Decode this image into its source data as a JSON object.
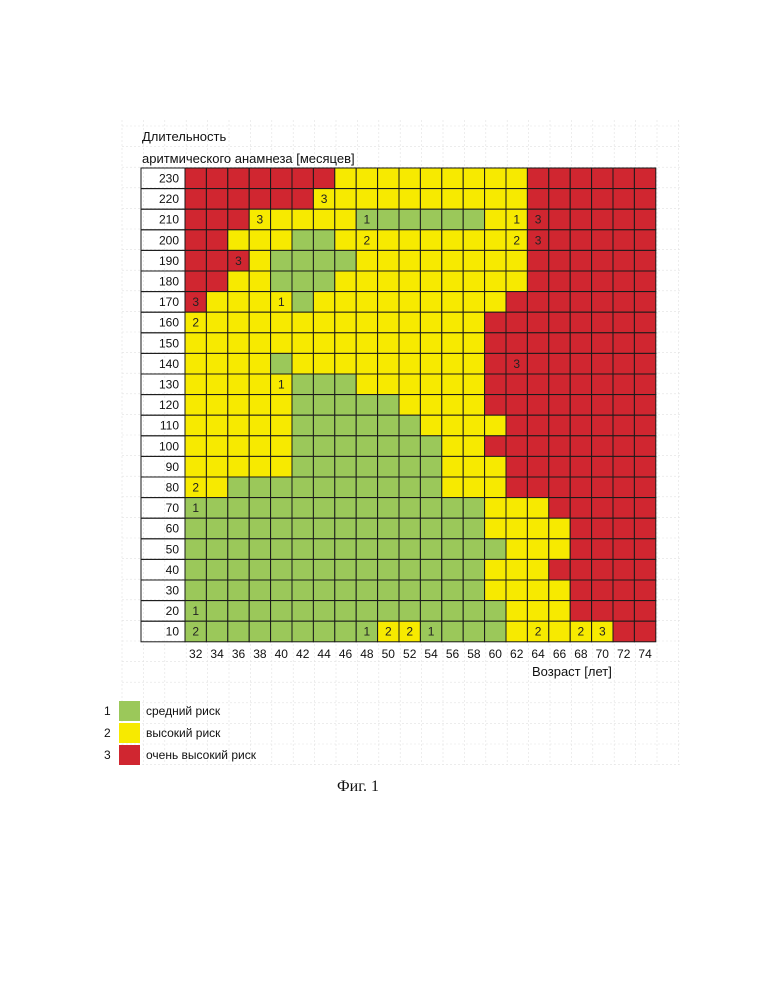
{
  "chart_data": {
    "type": "heatmap",
    "ylabel_line1": "Длительность",
    "ylabel_line2": "аритмического анамнеза [месяцев]",
    "xlabel": "Возраст [лет]",
    "x": [
      32,
      34,
      36,
      38,
      40,
      42,
      44,
      46,
      48,
      50,
      52,
      54,
      56,
      58,
      60,
      62,
      64,
      66,
      68,
      70,
      72,
      74
    ],
    "y": [
      230,
      220,
      210,
      200,
      190,
      180,
      170,
      160,
      150,
      140,
      130,
      120,
      110,
      100,
      90,
      80,
      70,
      60,
      50,
      40,
      30,
      20,
      10
    ],
    "rows": [
      "3333333222222222333333",
      "3333332222222222333333",
      "3332222211111122333333",
      "3322211222222222333333",
      "3332111122222222333333",
      "3322111222222222333333",
      "3222212222222223333333",
      "2222222222222233333333",
      "2222222222222233333333",
      "2222122222222233333333",
      "2222211122222233333333",
      "2222211111222233333333",
      "2222211111122223333333",
      "2222211111112233333333",
      "2222211111112223333333",
      "2211111111112223333333",
      "1111111111111122233333",
      "1111111111111122223333",
      "1111111111111112223333",
      "1111111111111122233333",
      "1111111111111122223333",
      "1111111111111112223333",
      "1111111112211112222233"
    ],
    "annotations": [
      {
        "age": 44,
        "months": 220,
        "label": "3"
      },
      {
        "age": 38,
        "months": 210,
        "label": "3"
      },
      {
        "age": 48,
        "months": 210,
        "label": "1"
      },
      {
        "age": 62,
        "months": 210,
        "label": "1"
      },
      {
        "age": 64,
        "months": 210,
        "label": "3"
      },
      {
        "age": 48,
        "months": 200,
        "label": "2"
      },
      {
        "age": 62,
        "months": 200,
        "label": "2"
      },
      {
        "age": 64,
        "months": 200,
        "label": "3"
      },
      {
        "age": 36,
        "months": 190,
        "label": "3"
      },
      {
        "age": 32,
        "months": 170,
        "label": "3"
      },
      {
        "age": 40,
        "months": 170,
        "label": "1"
      },
      {
        "age": 32,
        "months": 160,
        "label": "2"
      },
      {
        "age": 62,
        "months": 140,
        "label": "3"
      },
      {
        "age": 40,
        "months": 130,
        "label": "1"
      },
      {
        "age": 32,
        "months": 80,
        "label": "2"
      },
      {
        "age": 32,
        "months": 70,
        "label": "1"
      },
      {
        "age": 32,
        "months": 20,
        "label": "1"
      },
      {
        "age": 32,
        "months": 10,
        "label": "2"
      },
      {
        "age": 48,
        "months": 10,
        "label": "1"
      },
      {
        "age": 50,
        "months": 10,
        "label": "2"
      },
      {
        "age": 52,
        "months": 10,
        "label": "2"
      },
      {
        "age": 54,
        "months": 10,
        "label": "1"
      },
      {
        "age": 64,
        "months": 10,
        "label": "2"
      },
      {
        "age": 68,
        "months": 10,
        "label": "2"
      },
      {
        "age": 70,
        "months": 10,
        "label": "3"
      }
    ],
    "legend": [
      {
        "code": "1",
        "label": "средний риск",
        "color": "#9bc85a"
      },
      {
        "code": "2",
        "label": "высокий риск",
        "color": "#f7ea00"
      },
      {
        "code": "3",
        "label": "очень высокий риск",
        "color": "#d02630"
      }
    ],
    "grid": true,
    "legend_position": "bottom-left"
  },
  "caption": "Фиг. 1"
}
